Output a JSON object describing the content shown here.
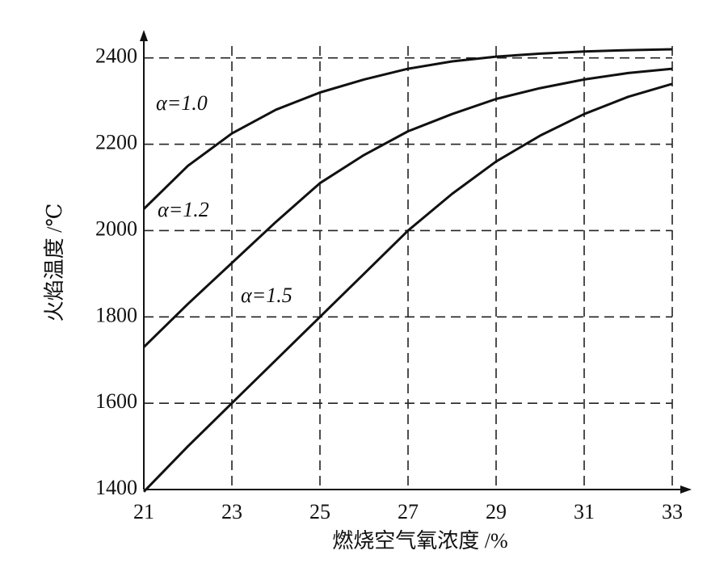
{
  "chart_data": {
    "type": "line",
    "x_label": "燃烧空气氧浓度 /%",
    "y_label": "火焰温度 /℃",
    "x": [
      21,
      22,
      23,
      24,
      25,
      26,
      27,
      28,
      29,
      30,
      31,
      32,
      33
    ],
    "series": [
      {
        "name": "α=1.0",
        "color": "#111111",
        "values": [
          2050,
          2150,
          2225,
          2280,
          2320,
          2350,
          2375,
          2392,
          2403,
          2410,
          2415,
          2418,
          2420
        ]
      },
      {
        "name": "α=1.2",
        "color": "#111111",
        "values": [
          1730,
          1830,
          1925,
          2020,
          2110,
          2175,
          2230,
          2270,
          2305,
          2330,
          2350,
          2365,
          2375
        ]
      },
      {
        "name": "α=1.5",
        "color": "#111111",
        "values": [
          1395,
          1500,
          1600,
          1700,
          1800,
          1900,
          2000,
          2085,
          2160,
          2220,
          2270,
          2310,
          2340
        ]
      }
    ],
    "xlim": [
      21,
      33
    ],
    "xticks": [
      21,
      23,
      25,
      27,
      29,
      31,
      33
    ],
    "ylim": [
      1400,
      2450
    ],
    "yticks": [
      1400,
      1600,
      1800,
      2000,
      2200,
      2400
    ],
    "grid": true
  }
}
